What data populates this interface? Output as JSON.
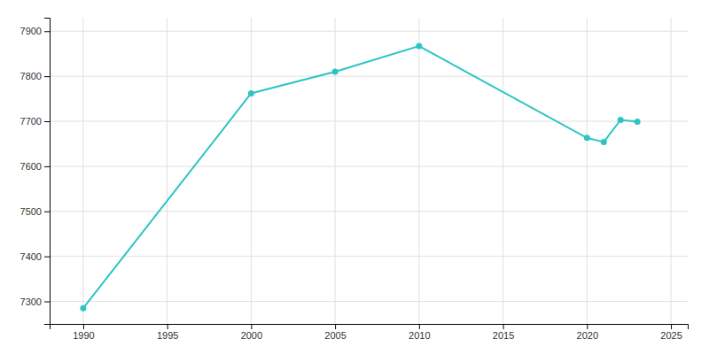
{
  "chart_data": {
    "type": "line",
    "x": [
      1990,
      2000,
      2005,
      2010,
      2020,
      2021,
      2022,
      2023
    ],
    "values": [
      7285,
      7762,
      7810,
      7867,
      7663,
      7654,
      7703,
      7699
    ],
    "color": "#2ec4c4",
    "marker": "circle",
    "xlim": [
      1988,
      2026
    ],
    "ylim": [
      7250,
      7930
    ],
    "xticks": [
      1990,
      1995,
      2000,
      2005,
      2010,
      2015,
      2020,
      2025
    ],
    "yticks": [
      7300,
      7400,
      7500,
      7600,
      7700,
      7800,
      7900
    ],
    "grid": true
  }
}
